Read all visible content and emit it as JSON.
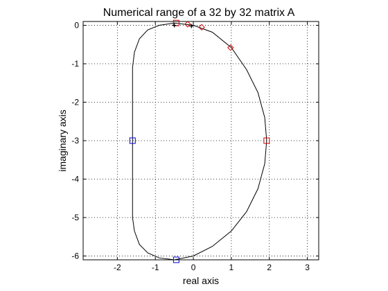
{
  "chart_data": {
    "type": "line",
    "title": "Numerical range of a 32 by 32 matrix A",
    "xlabel": "real  axis",
    "ylabel": "imaginary  axis",
    "xlim": [
      -2.9,
      3.3
    ],
    "ylim": [
      -6.1,
      0.1
    ],
    "xticks": [
      -2,
      -1,
      0,
      1,
      2,
      3
    ],
    "yticks": [
      0,
      -1,
      -2,
      -3,
      -4,
      -5,
      -6
    ],
    "xtick_labels": [
      "-2",
      "-1",
      "0",
      "1",
      "2",
      "3"
    ],
    "ytick_labels": [
      "0",
      "-1",
      "-2",
      "-3",
      "-4",
      "-5",
      "-6"
    ],
    "grid": true,
    "grid_style": "dotted",
    "colors": {
      "boundary": "#000000",
      "red_markers": "#cc0000",
      "blue_markers": "#0000cc",
      "eigenvalue": "#000000"
    },
    "series": [
      {
        "marker": "line",
        "color": "#000000",
        "points": [
          [
            -0.5,
            0.06
          ],
          [
            -0.9,
            0.0
          ],
          [
            -1.2,
            -0.12
          ],
          [
            -1.42,
            -0.35
          ],
          [
            -1.55,
            -0.7
          ],
          [
            -1.6,
            -1.1
          ],
          [
            -1.6,
            -2.0
          ],
          [
            -1.6,
            -3.0
          ],
          [
            -1.6,
            -4.0
          ],
          [
            -1.6,
            -5.0
          ],
          [
            -1.55,
            -5.35
          ],
          [
            -1.42,
            -5.7
          ],
          [
            -1.2,
            -5.92
          ],
          [
            -0.9,
            -6.05
          ],
          [
            -0.5,
            -6.1
          ],
          [
            0.0,
            -6.0
          ],
          [
            0.5,
            -5.75
          ],
          [
            1.0,
            -5.35
          ],
          [
            1.4,
            -4.85
          ],
          [
            1.7,
            -4.25
          ],
          [
            1.88,
            -3.6
          ],
          [
            1.93,
            -3.0
          ],
          [
            1.88,
            -2.4
          ],
          [
            1.7,
            -1.75
          ],
          [
            1.4,
            -1.15
          ],
          [
            1.0,
            -0.58
          ],
          [
            0.5,
            -0.18
          ],
          [
            0.0,
            0.0
          ],
          [
            -0.5,
            0.06
          ]
        ]
      },
      {
        "marker": "square",
        "color": "#cc0000",
        "points": [
          [
            -0.45,
            0.06
          ],
          [
            1.93,
            -3.0
          ]
        ]
      },
      {
        "marker": "diamond",
        "color": "#cc0000",
        "points": [
          [
            -0.15,
            0.03
          ],
          [
            0.22,
            -0.05
          ],
          [
            0.98,
            -0.58
          ]
        ]
      },
      {
        "marker": "square",
        "color": "#0000cc",
        "points": [
          [
            -1.6,
            -3.0
          ],
          [
            -0.45,
            -6.1
          ]
        ]
      },
      {
        "marker": "plus",
        "color": "#000000",
        "points": [
          [
            -0.5,
            0.0
          ],
          [
            -0.05,
            -0.02
          ]
        ]
      }
    ]
  }
}
